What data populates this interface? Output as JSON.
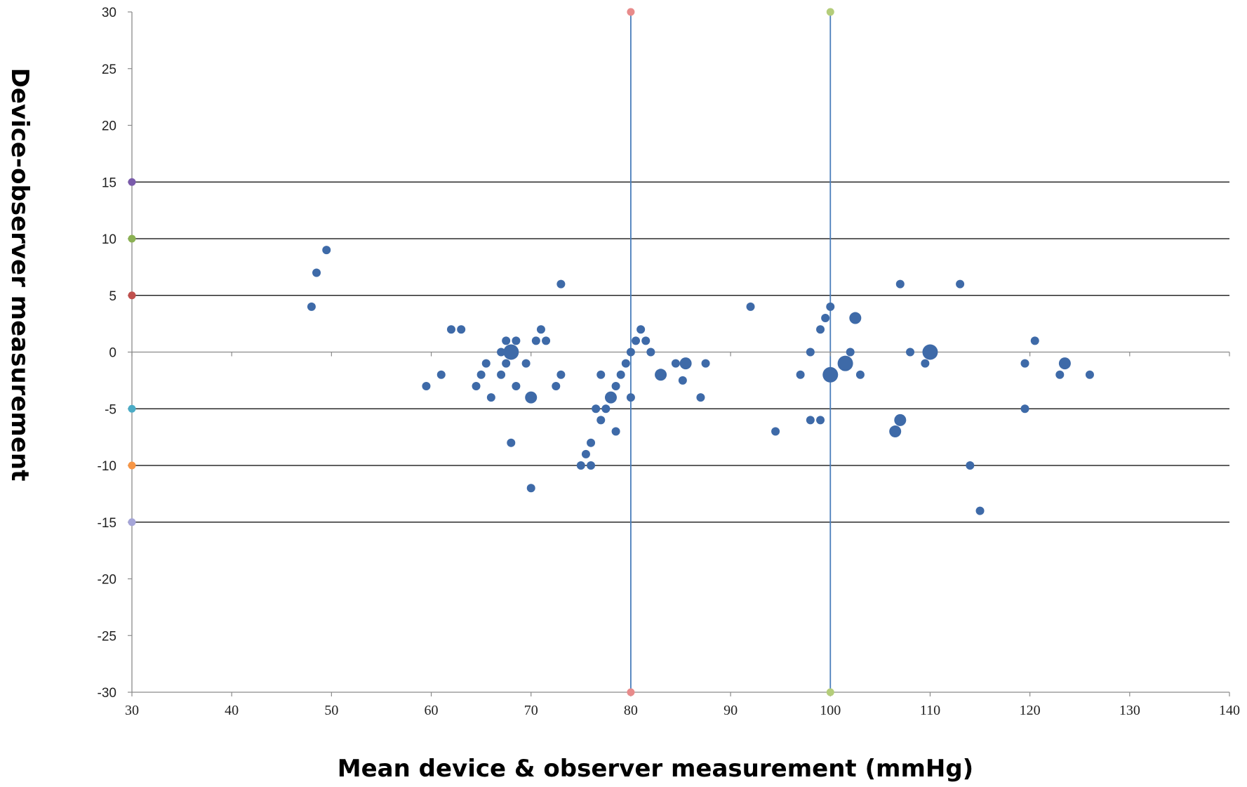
{
  "chart_data": {
    "type": "scatter",
    "xlabel": "Mean device & observer measurement (mmHg)",
    "ylabel": "Device-observer measurement",
    "xlim": [
      30,
      140
    ],
    "ylim": [
      -30,
      30
    ],
    "x_ticks": [
      30,
      40,
      50,
      60,
      70,
      80,
      90,
      100,
      110,
      120,
      130,
      140
    ],
    "y_ticks": [
      30,
      25,
      20,
      15,
      10,
      5,
      0,
      -5,
      -10,
      -15,
      -20,
      -25,
      -30
    ],
    "horizontal_reference_lines": [
      15,
      10,
      5,
      -5,
      -10,
      -15
    ],
    "vertical_reference_lines": [
      80,
      100
    ],
    "point_color": "#3e6aa8",
    "hline_color": "#000000",
    "vline_color": "#4a7ebb",
    "grid": false,
    "legend": "none",
    "marker_colors": {
      "y15": "#7a5bab",
      "y10": "#8bb153",
      "y5": "#c0504d",
      "ym5": "#4bacc6",
      "ym10": "#f79646",
      "ym15": "#a5a5d8",
      "x80": "#e88b8b",
      "x100": "#b4cd7a"
    },
    "points": [
      {
        "x": 48,
        "y": 4,
        "n": 1
      },
      {
        "x": 48.5,
        "y": 7,
        "n": 1
      },
      {
        "x": 49.5,
        "y": 9,
        "n": 1
      },
      {
        "x": 59.5,
        "y": -3,
        "n": 1
      },
      {
        "x": 61,
        "y": -2,
        "n": 1
      },
      {
        "x": 62,
        "y": 2,
        "n": 1
      },
      {
        "x": 63,
        "y": 2,
        "n": 1
      },
      {
        "x": 64.5,
        "y": -3,
        "n": 1
      },
      {
        "x": 65,
        "y": -2,
        "n": 1
      },
      {
        "x": 65.5,
        "y": -1,
        "n": 1
      },
      {
        "x": 66,
        "y": -4,
        "n": 1
      },
      {
        "x": 67,
        "y": -2,
        "n": 1
      },
      {
        "x": 67,
        "y": 0,
        "n": 1
      },
      {
        "x": 67.5,
        "y": -1,
        "n": 1
      },
      {
        "x": 67.5,
        "y": 1,
        "n": 1
      },
      {
        "x": 68,
        "y": 0,
        "n": 3
      },
      {
        "x": 68,
        "y": -8,
        "n": 1
      },
      {
        "x": 68.5,
        "y": -3,
        "n": 1
      },
      {
        "x": 68.5,
        "y": 1,
        "n": 1
      },
      {
        "x": 69.5,
        "y": -1,
        "n": 1
      },
      {
        "x": 70,
        "y": -4,
        "n": 2
      },
      {
        "x": 70,
        "y": -12,
        "n": 1
      },
      {
        "x": 70.5,
        "y": 1,
        "n": 1
      },
      {
        "x": 71,
        "y": 2,
        "n": 1
      },
      {
        "x": 71.5,
        "y": 1,
        "n": 1
      },
      {
        "x": 72.5,
        "y": -3,
        "n": 1
      },
      {
        "x": 73,
        "y": -2,
        "n": 1
      },
      {
        "x": 73,
        "y": 6,
        "n": 1
      },
      {
        "x": 75,
        "y": -10,
        "n": 1
      },
      {
        "x": 75.5,
        "y": -9,
        "n": 1
      },
      {
        "x": 76,
        "y": -10,
        "n": 1
      },
      {
        "x": 76,
        "y": -8,
        "n": 1
      },
      {
        "x": 76.5,
        "y": -5,
        "n": 1
      },
      {
        "x": 77,
        "y": -6,
        "n": 1
      },
      {
        "x": 77,
        "y": -2,
        "n": 1
      },
      {
        "x": 77.5,
        "y": -5,
        "n": 1
      },
      {
        "x": 78,
        "y": -4,
        "n": 2
      },
      {
        "x": 78.5,
        "y": -3,
        "n": 1
      },
      {
        "x": 78.5,
        "y": -7,
        "n": 1
      },
      {
        "x": 79,
        "y": -2,
        "n": 1
      },
      {
        "x": 79.5,
        "y": -1,
        "n": 1
      },
      {
        "x": 80,
        "y": 0,
        "n": 1
      },
      {
        "x": 80,
        "y": -4,
        "n": 1
      },
      {
        "x": 80.5,
        "y": 1,
        "n": 1
      },
      {
        "x": 81,
        "y": 2,
        "n": 1
      },
      {
        "x": 81.5,
        "y": 1,
        "n": 1
      },
      {
        "x": 82,
        "y": 0,
        "n": 1
      },
      {
        "x": 83,
        "y": -2,
        "n": 2
      },
      {
        "x": 84.5,
        "y": -1,
        "n": 1
      },
      {
        "x": 85.2,
        "y": -2.5,
        "n": 1
      },
      {
        "x": 85.5,
        "y": -1,
        "n": 2
      },
      {
        "x": 87,
        "y": -4,
        "n": 1
      },
      {
        "x": 87.5,
        "y": -1,
        "n": 1
      },
      {
        "x": 92,
        "y": 4,
        "n": 1
      },
      {
        "x": 94.5,
        "y": -7,
        "n": 1
      },
      {
        "x": 97,
        "y": -2,
        "n": 1
      },
      {
        "x": 98,
        "y": 0,
        "n": 1
      },
      {
        "x": 98,
        "y": -6,
        "n": 1
      },
      {
        "x": 99,
        "y": 2,
        "n": 1
      },
      {
        "x": 99,
        "y": -6,
        "n": 1
      },
      {
        "x": 99.5,
        "y": 3,
        "n": 1
      },
      {
        "x": 100,
        "y": 4,
        "n": 1
      },
      {
        "x": 100,
        "y": -2,
        "n": 3
      },
      {
        "x": 101.5,
        "y": -1,
        "n": 3
      },
      {
        "x": 102,
        "y": 0,
        "n": 1
      },
      {
        "x": 102.5,
        "y": 3,
        "n": 2
      },
      {
        "x": 103,
        "y": -2,
        "n": 1
      },
      {
        "x": 106.5,
        "y": -7,
        "n": 2
      },
      {
        "x": 107,
        "y": -6,
        "n": 2
      },
      {
        "x": 107,
        "y": 6,
        "n": 1
      },
      {
        "x": 108,
        "y": 0,
        "n": 1
      },
      {
        "x": 109.5,
        "y": -1,
        "n": 1
      },
      {
        "x": 110,
        "y": 0,
        "n": 3
      },
      {
        "x": 113,
        "y": 6,
        "n": 1
      },
      {
        "x": 114,
        "y": -10,
        "n": 1
      },
      {
        "x": 115,
        "y": -14,
        "n": 1
      },
      {
        "x": 119.5,
        "y": -1,
        "n": 1
      },
      {
        "x": 119.5,
        "y": -5,
        "n": 1
      },
      {
        "x": 120.5,
        "y": 1,
        "n": 1
      },
      {
        "x": 123,
        "y": -2,
        "n": 1
      },
      {
        "x": 123.5,
        "y": -1,
        "n": 2
      },
      {
        "x": 126,
        "y": -2,
        "n": 1
      }
    ]
  }
}
